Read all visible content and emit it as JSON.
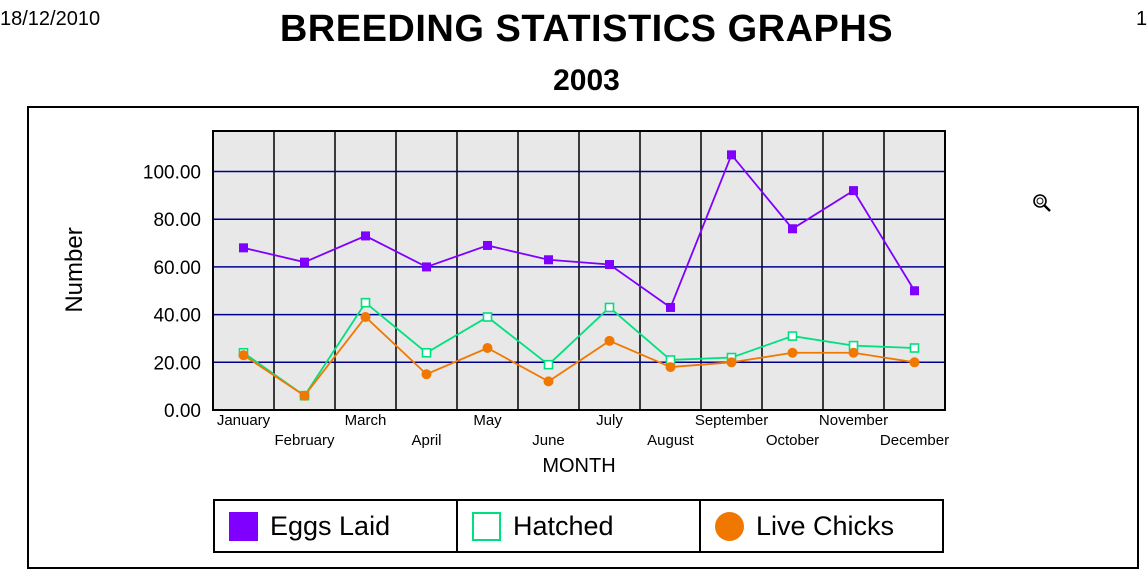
{
  "header": {
    "date": "18/12/2010",
    "page_number": "1",
    "title": "BREEDING STATISTICS GRAPHS",
    "year": "2003"
  },
  "chart_data": {
    "type": "line",
    "xlabel": "MONTH",
    "ylabel": "Number",
    "ylim": [
      0,
      117
    ],
    "yticks": [
      "0.00",
      "20.00",
      "40.00",
      "60.00",
      "80.00",
      "100.00"
    ],
    "grid": true,
    "categories": [
      "January",
      "February",
      "March",
      "April",
      "May",
      "June",
      "July",
      "August",
      "September",
      "October",
      "November",
      "December"
    ],
    "series": [
      {
        "name": "Eggs Laid",
        "color": "#8000ff",
        "marker": "filled-square",
        "values": [
          68,
          62,
          73,
          60,
          69,
          63,
          61,
          43,
          107,
          76,
          92,
          50
        ]
      },
      {
        "name": "Hatched",
        "color": "#00e080",
        "marker": "hollow-square",
        "values": [
          24,
          6,
          45,
          24,
          39,
          19,
          43,
          21,
          22,
          31,
          27,
          26
        ]
      },
      {
        "name": "Live Chicks",
        "color": "#f07800",
        "marker": "filled-circle",
        "values": [
          23,
          6,
          39,
          15,
          26,
          12,
          29,
          18,
          20,
          24,
          24,
          20
        ]
      }
    ],
    "legend_position": "bottom"
  },
  "colors": {
    "plot_background": "#e8e8e8",
    "gridline": "#00008b"
  },
  "icons": {
    "zoom": "magnifier-icon"
  }
}
